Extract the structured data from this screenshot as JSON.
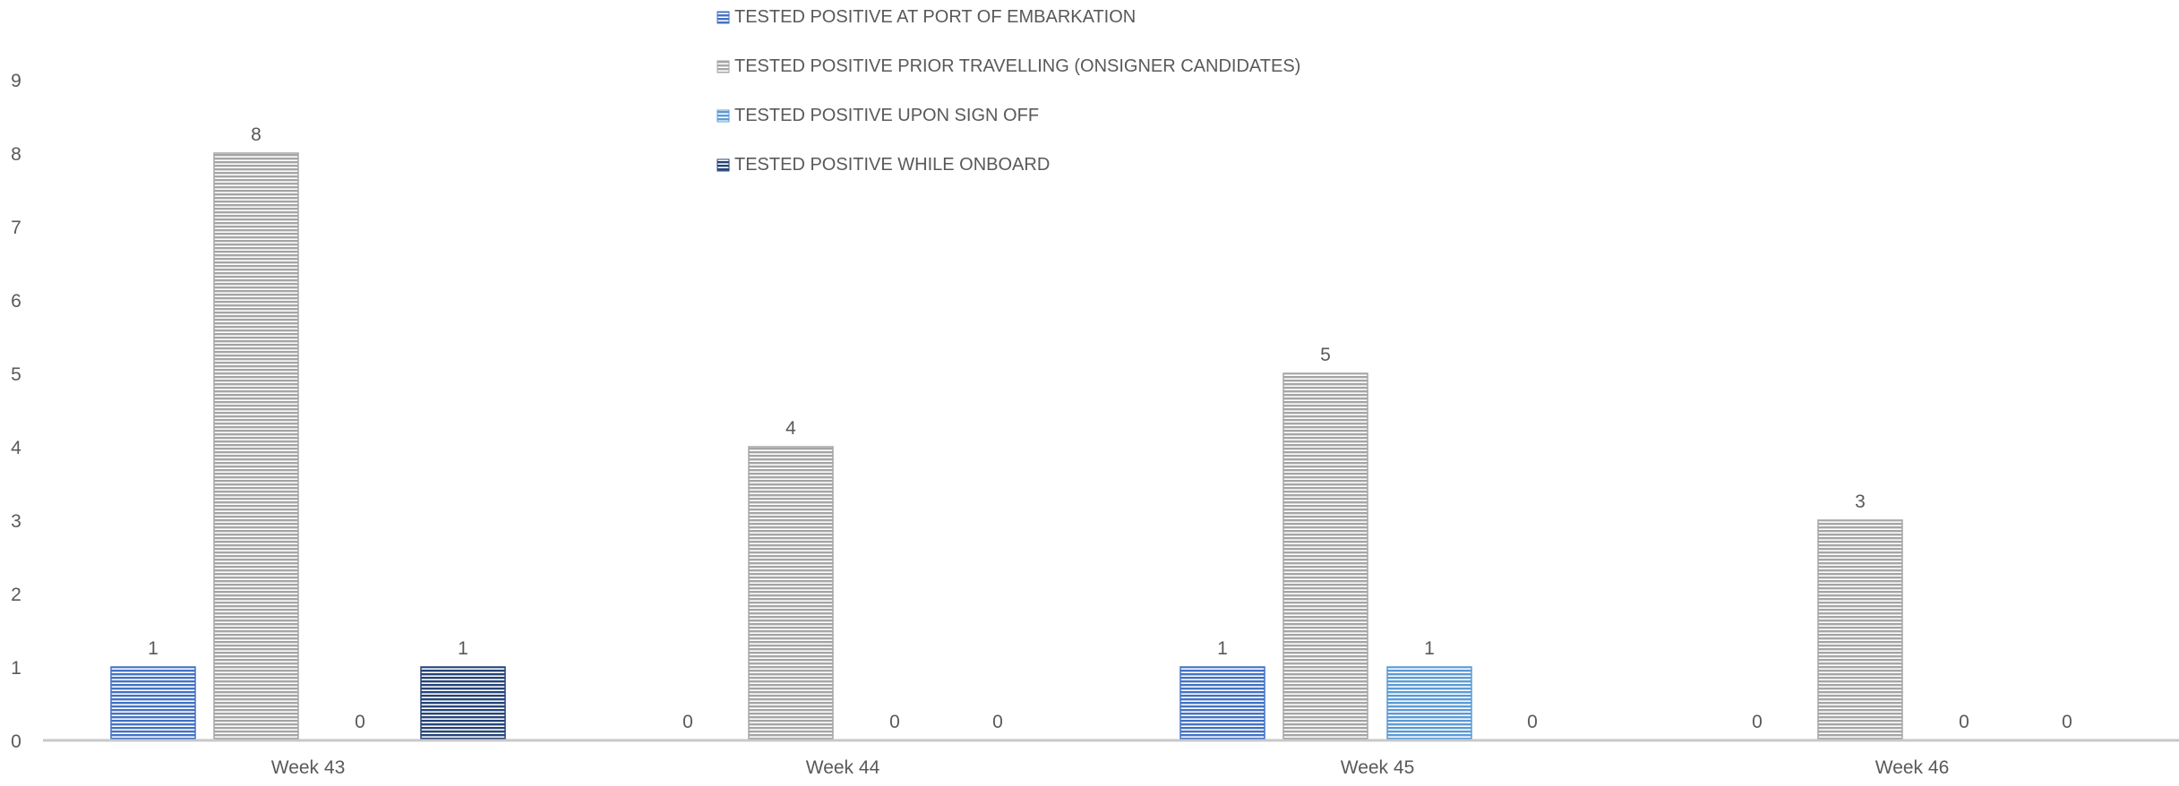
{
  "chart_data": {
    "type": "bar",
    "title": "",
    "xlabel": "",
    "ylabel": "",
    "ylim": [
      0,
      9
    ],
    "yticks": [
      0,
      1,
      2,
      3,
      4,
      5,
      6,
      7,
      8,
      9
    ],
    "grid": false,
    "legend_position": "top-center",
    "categories": [
      "Week 43",
      "Week 44",
      "Week 45",
      "Week 46"
    ],
    "series": [
      {
        "name": "TESTED POSITIVE AT PORT OF EMBARKATION",
        "values": [
          1,
          0,
          1,
          0
        ],
        "color": "#4472C4",
        "pattern": "horizontal-stripes"
      },
      {
        "name": "TESTED POSITIVE PRIOR TRAVELLING (ONSIGNER CANDIDATES)",
        "values": [
          8,
          4,
          5,
          3
        ],
        "color": "#A5A5A5",
        "pattern": "horizontal-stripes"
      },
      {
        "name": "TESTED POSITIVE UPON SIGN OFF",
        "values": [
          0,
          0,
          1,
          0
        ],
        "color": "#5B9BD5",
        "pattern": "horizontal-stripes"
      },
      {
        "name": "TESTED POSITIVE WHILE ONBOARD",
        "values": [
          1,
          0,
          0,
          0
        ],
        "color": "#264478",
        "pattern": "horizontal-stripes"
      }
    ],
    "data_labels": true
  }
}
